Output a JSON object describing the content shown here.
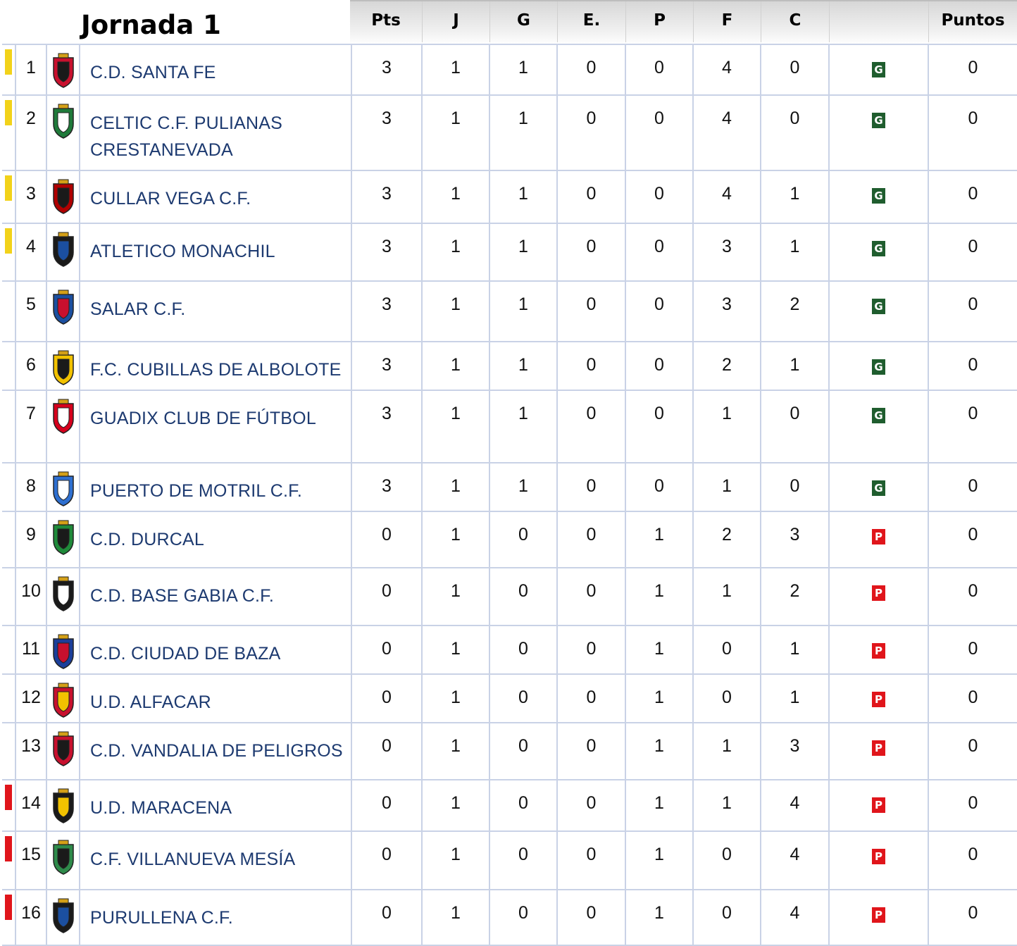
{
  "title": "Jornada 1",
  "columns": {
    "pts": "Pts",
    "j": "J",
    "g": "G",
    "e": "E.",
    "p": "P",
    "f": "F",
    "c": "C",
    "result": "",
    "puntos": "Puntos"
  },
  "colors": {
    "team_text": "#1d3a70",
    "promotion_marker": "#f2d21a",
    "relegation_marker": "#e0151b",
    "win_badge": "#1f5d2e",
    "loss_badge": "#e0151b",
    "grid_line": "#c9d2e6"
  },
  "rows": [
    {
      "pos": "1",
      "team": "C.D. SANTA FE",
      "team2": "",
      "pts": "3",
      "j": "1",
      "g": "1",
      "e": "0",
      "p": "0",
      "f": "4",
      "c": "0",
      "result": "G",
      "puntos": "0",
      "marker": "yellow",
      "crest": "santa-fe-crest-icon"
    },
    {
      "pos": "2",
      "team": "CELTIC C.F. PULIANAS",
      "team2": "CRESTANEVADA",
      "pts": "3",
      "j": "1",
      "g": "1",
      "e": "0",
      "p": "0",
      "f": "4",
      "c": "0",
      "result": "G",
      "puntos": "0",
      "marker": "yellow",
      "crest": "celtic-pulianas-crest-icon"
    },
    {
      "pos": "3",
      "team": "CULLAR VEGA C.F.",
      "team2": "",
      "pts": "3",
      "j": "1",
      "g": "1",
      "e": "0",
      "p": "0",
      "f": "4",
      "c": "1",
      "result": "G",
      "puntos": "0",
      "marker": "yellow",
      "crest": "cullar-vega-crest-icon"
    },
    {
      "pos": "4",
      "team": "ATLETICO MONACHIL",
      "team2": "",
      "pts": "3",
      "j": "1",
      "g": "1",
      "e": "0",
      "p": "0",
      "f": "3",
      "c": "1",
      "result": "G",
      "puntos": "0",
      "marker": "yellow",
      "crest": "atletico-monachil-crest-icon"
    },
    {
      "pos": "5",
      "team": "SALAR C.F.",
      "team2": "",
      "pts": "3",
      "j": "1",
      "g": "1",
      "e": "0",
      "p": "0",
      "f": "3",
      "c": "2",
      "result": "G",
      "puntos": "0",
      "marker": "",
      "crest": "salar-crest-icon"
    },
    {
      "pos": "6",
      "team": "F.C. CUBILLAS DE ALBOLOTE",
      "team2": "",
      "pts": "3",
      "j": "1",
      "g": "1",
      "e": "0",
      "p": "0",
      "f": "2",
      "c": "1",
      "result": "G",
      "puntos": "0",
      "marker": "",
      "crest": "cubillas-albolote-crest-icon"
    },
    {
      "pos": "7",
      "team": "GUADIX CLUB DE FÚTBOL",
      "team2": "",
      "pts": "3",
      "j": "1",
      "g": "1",
      "e": "0",
      "p": "0",
      "f": "1",
      "c": "0",
      "result": "G",
      "puntos": "0",
      "marker": "",
      "crest": "guadix-crest-icon"
    },
    {
      "pos": "8",
      "team": "PUERTO DE MOTRIL C.F.",
      "team2": "",
      "pts": "3",
      "j": "1",
      "g": "1",
      "e": "0",
      "p": "0",
      "f": "1",
      "c": "0",
      "result": "G",
      "puntos": "0",
      "marker": "",
      "crest": "puerto-motril-crest-icon"
    },
    {
      "pos": "9",
      "team": "C.D. DURCAL",
      "team2": "",
      "pts": "0",
      "j": "1",
      "g": "0",
      "e": "0",
      "p": "1",
      "f": "2",
      "c": "3",
      "result": "P",
      "puntos": "0",
      "marker": "",
      "crest": "durcal-crest-icon"
    },
    {
      "pos": "10",
      "team": "C.D. BASE GABIA C.F.",
      "team2": "",
      "pts": "0",
      "j": "1",
      "g": "0",
      "e": "0",
      "p": "1",
      "f": "1",
      "c": "2",
      "result": "P",
      "puntos": "0",
      "marker": "",
      "crest": "base-gabia-crest-icon"
    },
    {
      "pos": "11",
      "team": "C.D. CIUDAD DE BAZA",
      "team2": "",
      "pts": "0",
      "j": "1",
      "g": "0",
      "e": "0",
      "p": "1",
      "f": "0",
      "c": "1",
      "result": "P",
      "puntos": "0",
      "marker": "",
      "crest": "ciudad-baza-crest-icon"
    },
    {
      "pos": "12",
      "team": "U.D. ALFACAR",
      "team2": "",
      "pts": "0",
      "j": "1",
      "g": "0",
      "e": "0",
      "p": "1",
      "f": "0",
      "c": "1",
      "result": "P",
      "puntos": "0",
      "marker": "",
      "crest": "alfacar-crest-icon"
    },
    {
      "pos": "13",
      "team": "C.D. VANDALIA DE PELIGROS",
      "team2": "",
      "pts": "0",
      "j": "1",
      "g": "0",
      "e": "0",
      "p": "1",
      "f": "1",
      "c": "3",
      "result": "P",
      "puntos": "0",
      "marker": "",
      "crest": "vandalia-peligros-crest-icon"
    },
    {
      "pos": "14",
      "team": "U.D. MARACENA",
      "team2": "",
      "pts": "0",
      "j": "1",
      "g": "0",
      "e": "0",
      "p": "1",
      "f": "1",
      "c": "4",
      "result": "P",
      "puntos": "0",
      "marker": "red",
      "crest": "maracena-crest-icon"
    },
    {
      "pos": "15",
      "team": "C.F. VILLANUEVA MESÍA",
      "team2": "",
      "pts": "0",
      "j": "1",
      "g": "0",
      "e": "0",
      "p": "1",
      "f": "0",
      "c": "4",
      "result": "P",
      "puntos": "0",
      "marker": "red",
      "crest": "villanueva-mesia-crest-icon"
    },
    {
      "pos": "16",
      "team": "PURULLENA C.F.",
      "team2": "",
      "pts": "0",
      "j": "1",
      "g": "0",
      "e": "0",
      "p": "1",
      "f": "0",
      "c": "4",
      "result": "P",
      "puntos": "0",
      "marker": "red",
      "crest": "purullena-crest-icon"
    }
  ]
}
